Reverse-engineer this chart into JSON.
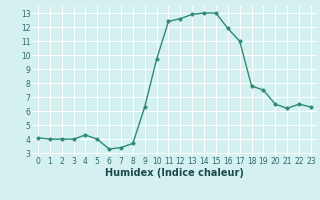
{
  "x": [
    0,
    1,
    2,
    3,
    4,
    5,
    6,
    7,
    8,
    9,
    10,
    11,
    12,
    13,
    14,
    15,
    16,
    17,
    18,
    19,
    20,
    21,
    22,
    23
  ],
  "y": [
    4.1,
    4.0,
    4.0,
    4.0,
    4.3,
    4.0,
    3.3,
    3.4,
    3.7,
    6.3,
    9.7,
    12.4,
    12.6,
    12.9,
    13.0,
    13.0,
    11.9,
    11.0,
    7.8,
    7.5,
    6.5,
    6.2,
    6.5,
    6.3
  ],
  "line_color": "#2e8b72",
  "marker_color": "#2e8b72",
  "bg_color": "#d4f0f0",
  "grid_color": "#ffffff",
  "xlabel": "Humidex (Indice chaleur)",
  "xlim": [
    -0.5,
    23.5
  ],
  "ylim": [
    2.8,
    13.5
  ],
  "yticks": [
    3,
    4,
    5,
    6,
    7,
    8,
    9,
    10,
    11,
    12,
    13
  ],
  "xticks": [
    0,
    1,
    2,
    3,
    4,
    5,
    6,
    7,
    8,
    9,
    10,
    11,
    12,
    13,
    14,
    15,
    16,
    17,
    18,
    19,
    20,
    21,
    22,
    23
  ],
  "xlabel_fontsize": 7,
  "tick_fontsize": 5.5,
  "line_width": 1.0,
  "marker_size": 2.5
}
